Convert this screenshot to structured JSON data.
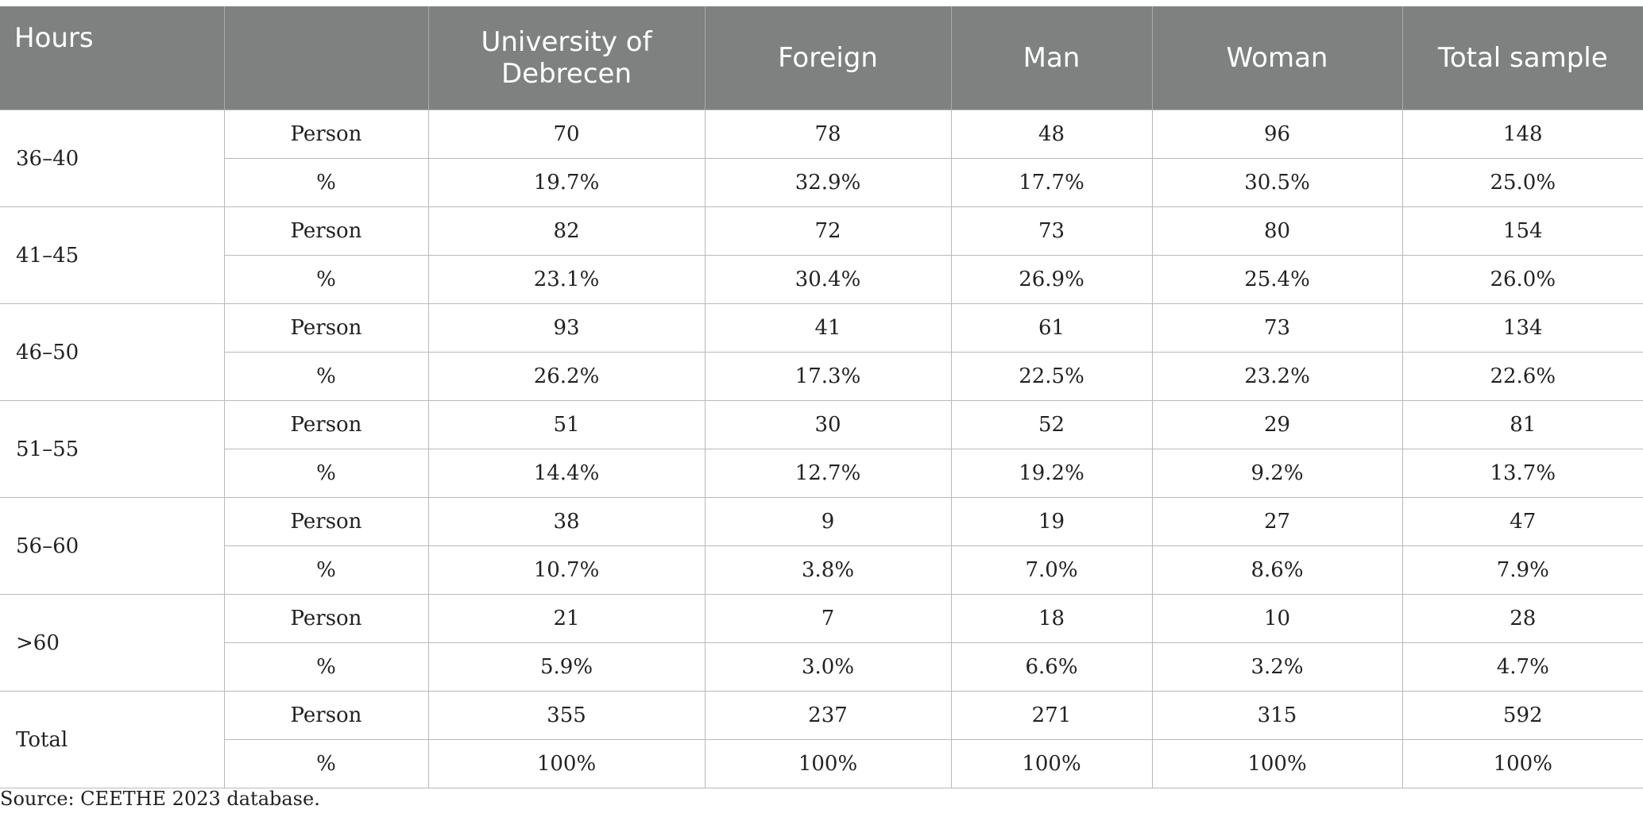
{
  "header": {
    "hours": "Hours",
    "metric": "",
    "columns": [
      "University of Debrecen",
      "Foreign",
      "Man",
      "Woman",
      "Total sample"
    ]
  },
  "groups": [
    {
      "hours": "36–40",
      "rows": [
        {
          "metric": "Person",
          "values": [
            "70",
            "78",
            "48",
            "96",
            "148"
          ]
        },
        {
          "metric": "%",
          "values": [
            "19.7%",
            "32.9%",
            "17.7%",
            "30.5%",
            "25.0%"
          ]
        }
      ]
    },
    {
      "hours": "41–45",
      "rows": [
        {
          "metric": "Person",
          "values": [
            "82",
            "72",
            "73",
            "80",
            "154"
          ]
        },
        {
          "metric": "%",
          "values": [
            "23.1%",
            "30.4%",
            "26.9%",
            "25.4%",
            "26.0%"
          ]
        }
      ]
    },
    {
      "hours": "46–50",
      "rows": [
        {
          "metric": "Person",
          "values": [
            "93",
            "41",
            "61",
            "73",
            "134"
          ]
        },
        {
          "metric": "%",
          "values": [
            "26.2%",
            "17.3%",
            "22.5%",
            "23.2%",
            "22.6%"
          ]
        }
      ]
    },
    {
      "hours": "51–55",
      "rows": [
        {
          "metric": "Person",
          "values": [
            "51",
            "30",
            "52",
            "29",
            "81"
          ]
        },
        {
          "metric": "%",
          "values": [
            "14.4%",
            "12.7%",
            "19.2%",
            "9.2%",
            "13.7%"
          ]
        }
      ]
    },
    {
      "hours": "56–60",
      "rows": [
        {
          "metric": "Person",
          "values": [
            "38",
            "9",
            "19",
            "27",
            "47"
          ]
        },
        {
          "metric": "%",
          "values": [
            "10.7%",
            "3.8%",
            "7.0%",
            "8.6%",
            "7.9%"
          ]
        }
      ]
    },
    {
      "hours": ">60",
      "rows": [
        {
          "metric": "Person",
          "values": [
            "21",
            "7",
            "18",
            "10",
            "28"
          ]
        },
        {
          "metric": "%",
          "values": [
            "5.9%",
            "3.0%",
            "6.6%",
            "3.2%",
            "4.7%"
          ]
        }
      ]
    },
    {
      "hours": "Total",
      "rows": [
        {
          "metric": "Person",
          "values": [
            "355",
            "237",
            "271",
            "315",
            "592"
          ]
        },
        {
          "metric": "%",
          "values": [
            "100%",
            "100%",
            "100%",
            "100%",
            "100%"
          ]
        }
      ]
    }
  ],
  "source": "Source: CEETHE 2023 database."
}
